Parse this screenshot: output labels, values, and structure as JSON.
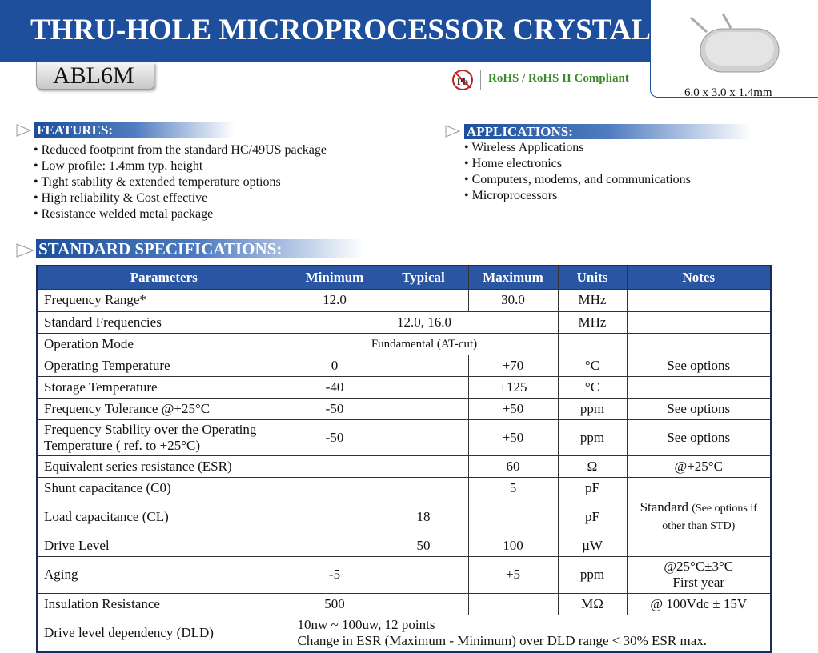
{
  "header": {
    "title": "THRU-HOLE MICROPROCESSOR CRYSTAL",
    "model": "ABL6M",
    "pb_icon": "Pb",
    "compliance": "RoHS / RoHS II Compliant",
    "dimensions": "6.0 x 3.0 x 1.4mm"
  },
  "features": {
    "title": "FEATURES:",
    "items": [
      "• Reduced footprint from the standard HC/49US package",
      "• Low profile: 1.4mm typ. height",
      "• Tight stability & extended temperature options",
      "• High reliability & Cost effective",
      "• Resistance welded metal package"
    ]
  },
  "applications": {
    "title": "APPLICATIONS:",
    "items": [
      "• Wireless Applications",
      "• Home electronics",
      "• Computers, modems, and communications",
      "• Microprocessors"
    ]
  },
  "specifications": {
    "title": "STANDARD SPECIFICATIONS:",
    "table": {
      "header": [
        "Parameters",
        "Minimum",
        "Typical",
        "Maximum",
        "Units",
        "Notes"
      ],
      "rows": [
        [
          "Frequency Range*",
          "12.0",
          "30.0",
          "MHz"
        ],
        [
          "Standard Frequencies",
          "12.0, 16.0",
          "MHz"
        ],
        [
          "Operation Mode",
          "Fundamental (AT-cut)"
        ],
        [
          "Operating Temperature",
          "0",
          "+70",
          "°C",
          "See options"
        ],
        [
          "Storage Temperature",
          "-40",
          "+125",
          "°C"
        ],
        [
          "Frequency Tolerance @+25°C",
          "-50",
          "+50",
          "ppm",
          "See options"
        ],
        [
          [
            "Frequency Stability over the Operating",
            "Temperature ( ref. to +25°C)"
          ],
          "-50",
          "+50",
          "ppm",
          "See options"
        ],
        [
          "Equivalent series resistance (ESR)",
          "60",
          "Ω",
          "@+25°C"
        ],
        [
          "Shunt capacitance (C0)",
          "5",
          "pF"
        ],
        [
          "Load capacitance (CL)",
          "18",
          "pF",
          [
            "Standard",
            "(See options if other than STD)"
          ]
        ],
        [
          "Drive Level",
          "50",
          "100",
          "µW"
        ],
        [
          "Aging",
          "-5",
          "+5",
          "ppm",
          [
            "@25°C±3°C",
            "First year"
          ]
        ],
        [
          "Insulation Resistance",
          "500",
          "MΩ",
          "@ 100Vdc ± 15V"
        ],
        [
          "Drive level dependency (DLD)",
          [
            "10nw ~ 100uw,  12 points",
            "Change in ESR (Maximum - Minimum) over DLD range < 30% ESR max."
          ]
        ]
      ]
    }
  }
}
